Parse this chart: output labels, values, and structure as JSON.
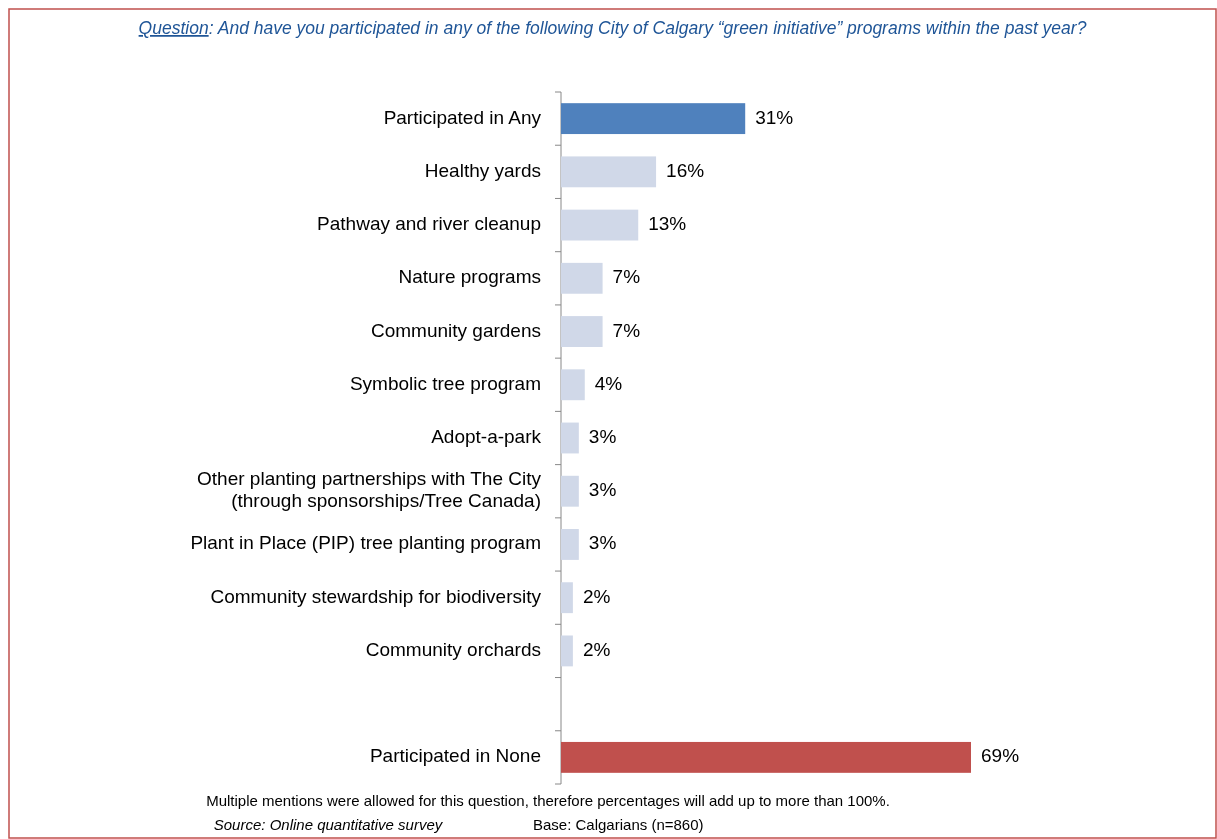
{
  "chart_data": {
    "type": "bar",
    "orientation": "horizontal",
    "title": "Question: And have you participated in any of the following City of Calgary “green initiative” programs within the past year?",
    "categories": [
      "Participated in Any",
      "Healthy yards",
      "Pathway and river cleanup",
      "Nature programs",
      "Community gardens",
      "Symbolic tree program",
      "Adopt-a-park",
      "Other planting partnerships with The City\n(through sponsorships/Tree Canada)",
      "Plant in Place (PIP) tree planting program",
      "Community stewardship for biodiversity",
      "Community orchards",
      null,
      "Participated in None"
    ],
    "values": [
      31,
      16,
      13,
      7,
      7,
      4,
      3,
      3,
      3,
      2,
      2,
      null,
      69
    ],
    "value_labels": [
      "31%",
      "16%",
      "13%",
      "7%",
      "7%",
      "4%",
      "3%",
      "3%",
      "3%",
      "2%",
      "2%",
      null,
      "69%"
    ],
    "colors": [
      "#4f81bd",
      "#d0d8e8",
      "#d0d8e8",
      "#d0d8e8",
      "#d0d8e8",
      "#d0d8e8",
      "#d0d8e8",
      "#d0d8e8",
      "#d0d8e8",
      "#d0d8e8",
      "#d0d8e8",
      null,
      "#c0504d"
    ],
    "annotations": [
      "Multiple mentions were allowed for this question, therefore percentages will add up to more than 100%.",
      "Source: Online quantitative survey",
      "Base: Calgarians (n=860)"
    ]
  }
}
